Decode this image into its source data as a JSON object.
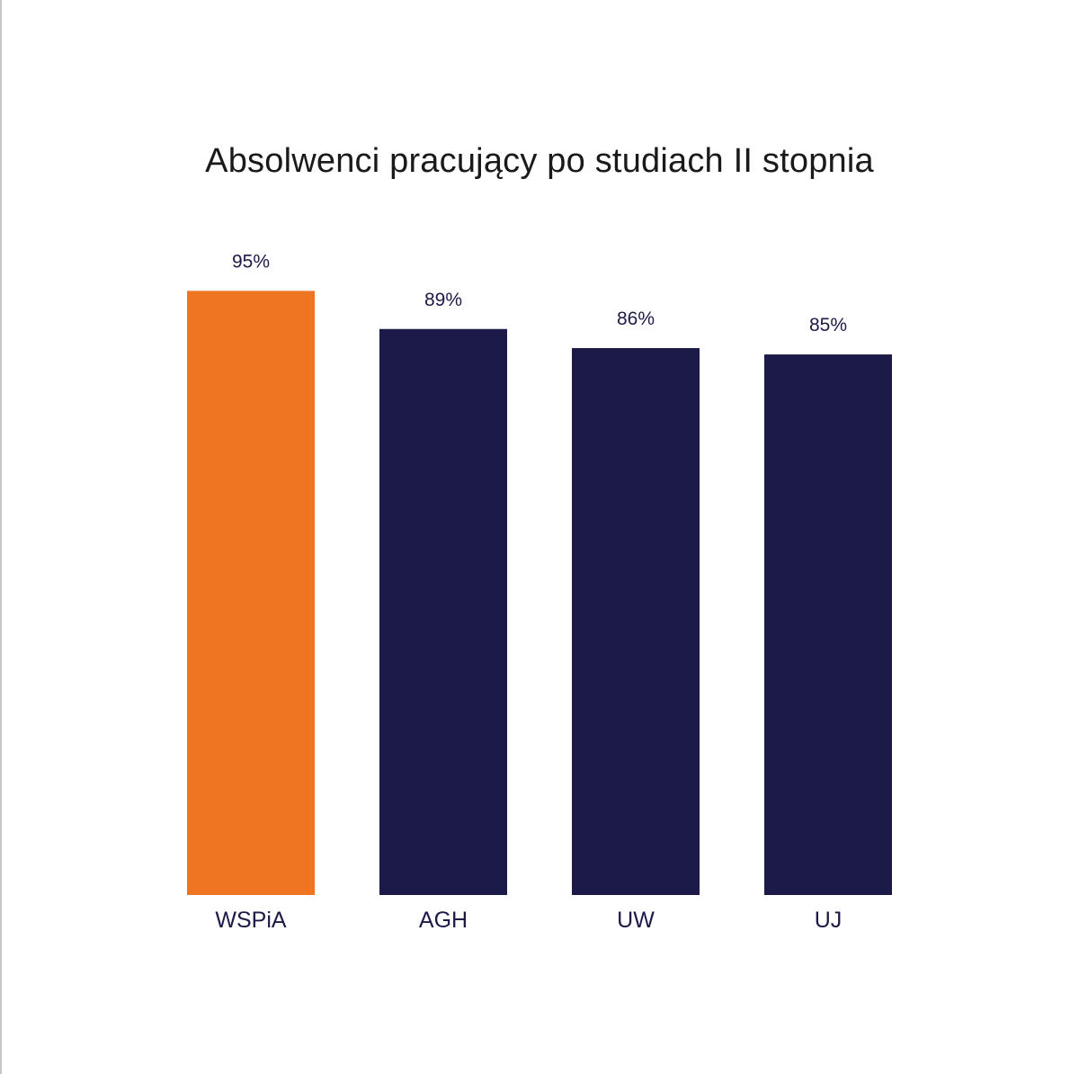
{
  "chart_data": {
    "type": "bar",
    "title": "Absolwenci pracujący po studiach II stopnia",
    "categories": [
      "WSPiA",
      "AGH",
      "UW",
      "UJ"
    ],
    "values": [
      95,
      89,
      86,
      85
    ],
    "value_labels": [
      "95%",
      "89%",
      "86%",
      "85%"
    ],
    "unit": "%",
    "ylim": [
      0,
      100
    ],
    "grid": false,
    "legend": "none",
    "colors": {
      "highlight": "#ee7623",
      "default": "#1b1a48"
    },
    "highlight_category": "WSPiA"
  }
}
